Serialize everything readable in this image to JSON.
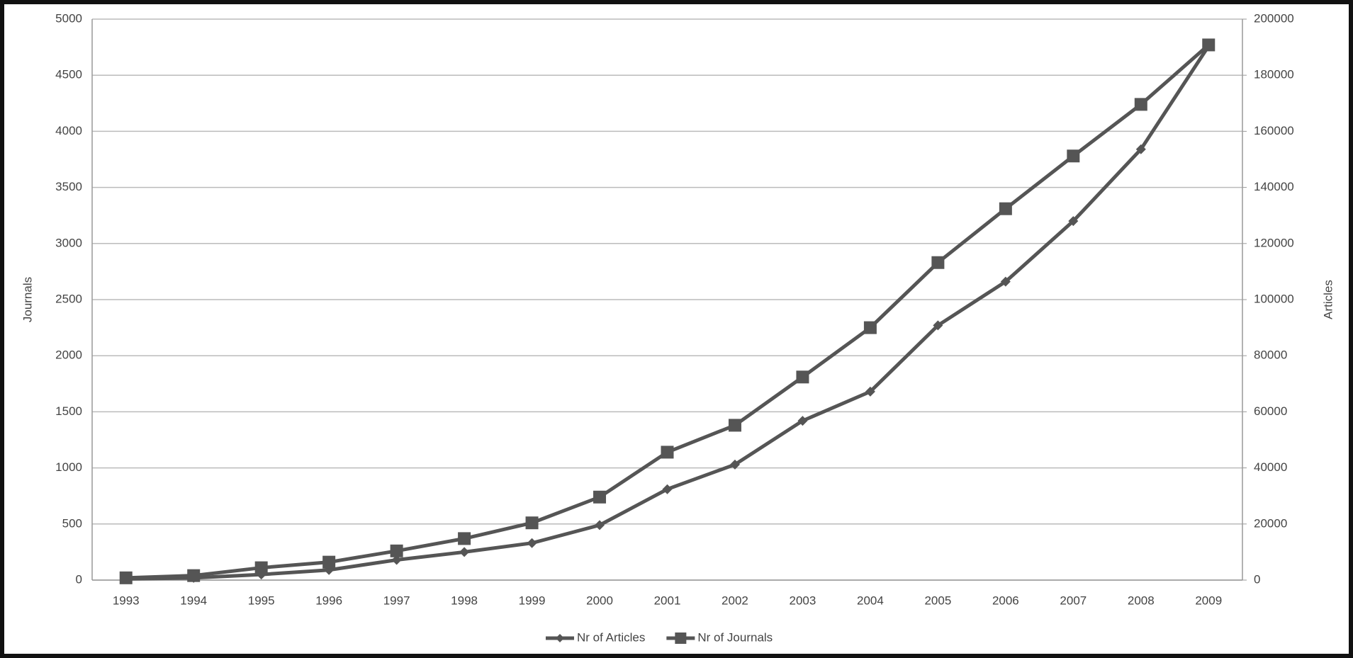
{
  "chart_data": {
    "type": "line",
    "categories": [
      "1993",
      "1994",
      "1995",
      "1996",
      "1997",
      "1998",
      "1999",
      "2000",
      "2001",
      "2002",
      "2003",
      "2004",
      "2005",
      "2006",
      "2007",
      "2008",
      "2009"
    ],
    "series": [
      {
        "name": "Nr of Articles",
        "color": "#555555",
        "axis": "y2",
        "marker": "diamond",
        "values": [
          400,
          800,
          2000,
          3600,
          7200,
          10000,
          13200,
          19600,
          32400,
          41200,
          56800,
          67200,
          90800,
          106400,
          128000,
          153600,
          190400
        ]
      },
      {
        "name": "Nr of Journals",
        "color": "#555555",
        "axis": "y",
        "marker": "square",
        "values": [
          20,
          40,
          110,
          160,
          260,
          370,
          510,
          740,
          1140,
          1380,
          1810,
          2250,
          2830,
          3310,
          3780,
          4240,
          4770
        ]
      }
    ],
    "ylabel": "Journals",
    "y2label": "Articles",
    "ylim": [
      0,
      5000
    ],
    "yticks": [
      0,
      500,
      1000,
      1500,
      2000,
      2500,
      3000,
      3500,
      4000,
      4500,
      5000
    ],
    "y2lim": [
      0,
      200000
    ],
    "y2ticks": [
      0,
      20000,
      40000,
      60000,
      80000,
      100000,
      120000,
      140000,
      160000,
      180000,
      200000
    ],
    "grid": true,
    "legend": "bottom"
  }
}
